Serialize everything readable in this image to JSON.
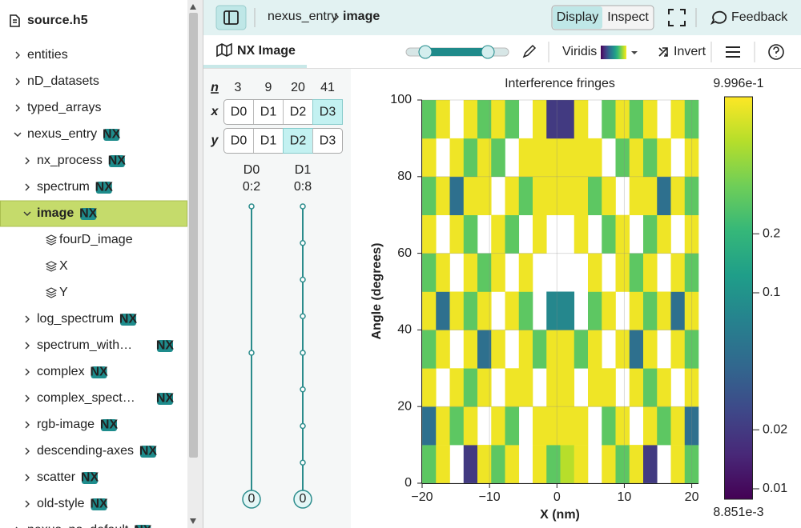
{
  "header": {
    "breadcrumb": [
      "nexus_entry",
      "image"
    ],
    "modes": [
      "Display",
      "Inspect"
    ],
    "active_mode": 0,
    "feedback": "Feedback"
  },
  "toolbar": {
    "tab": "NX Image",
    "colormap": "Viridis",
    "invert": "Invert"
  },
  "sidebar": {
    "title": "source.h5",
    "selected": 6,
    "items": [
      {
        "label": "entities",
        "level": 0,
        "kind": "group",
        "expanded": false
      },
      {
        "label": "nD_datasets",
        "level": 0,
        "kind": "group",
        "expanded": false
      },
      {
        "label": "typed_arrays",
        "level": 0,
        "kind": "group",
        "expanded": false
      },
      {
        "label": "nexus_entry",
        "badge": "NX",
        "level": 0,
        "kind": "group",
        "expanded": true
      },
      {
        "label": "nx_process",
        "badge": "NX",
        "level": 1,
        "kind": "group",
        "expanded": false
      },
      {
        "label": "spectrum",
        "badge": "NX",
        "level": 1,
        "kind": "group",
        "expanded": false
      },
      {
        "label": "image",
        "badge": "NX",
        "level": 1,
        "kind": "group",
        "expanded": true
      },
      {
        "label": "fourD_image",
        "level": 2,
        "kind": "dataset"
      },
      {
        "label": "X",
        "level": 2,
        "kind": "dataset"
      },
      {
        "label": "Y",
        "level": 2,
        "kind": "dataset"
      },
      {
        "label": "log_spectrum",
        "badge": "NX",
        "level": 1,
        "kind": "group",
        "expanded": false
      },
      {
        "label": "spectrum_with…",
        "badge": "NX",
        "level": 1,
        "kind": "group",
        "expanded": false
      },
      {
        "label": "complex",
        "badge": "NX",
        "level": 1,
        "kind": "group",
        "expanded": false
      },
      {
        "label": "complex_spect…",
        "badge": "NX",
        "level": 1,
        "kind": "group",
        "expanded": false
      },
      {
        "label": "rgb-image",
        "badge": "NX",
        "level": 1,
        "kind": "group",
        "expanded": false
      },
      {
        "label": "descending-axes",
        "badge": "NX",
        "level": 1,
        "kind": "group",
        "expanded": false
      },
      {
        "label": "scatter",
        "badge": "NX",
        "level": 1,
        "kind": "group",
        "expanded": false
      },
      {
        "label": "old-style",
        "badge": "NX",
        "level": 1,
        "kind": "group",
        "expanded": false
      },
      {
        "label": "nexus_no_default",
        "badge": "NX",
        "level": 0,
        "kind": "group",
        "expanded": false
      }
    ]
  },
  "dimension_mapper": {
    "n_label": "n",
    "sizes": [
      3,
      9,
      20,
      41
    ],
    "axes": [
      {
        "label": "x",
        "options": [
          "D0",
          "D1",
          "D2",
          "D3"
        ],
        "selected": 3
      },
      {
        "label": "y",
        "options": [
          "D0",
          "D1",
          "D2",
          "D3"
        ],
        "selected": 2
      }
    ],
    "sliders": [
      {
        "name": "D0",
        "range": "0:2",
        "value": 0
      },
      {
        "name": "D1",
        "range": "0:8",
        "value": 0
      }
    ]
  },
  "chart_data": {
    "type": "heatmap",
    "title": "Interference fringes",
    "x_label": "X (nm)",
    "y_label": "Angle (degrees)",
    "xlim": [
      -20,
      21
    ],
    "ylim": [
      0,
      100
    ],
    "xticks": [
      {
        "value": -20,
        "label": "−20"
      },
      {
        "value": -10,
        "label": "−10"
      },
      0,
      10,
      20
    ],
    "yticks": [
      0,
      20,
      40,
      60,
      80,
      100
    ],
    "grid": true,
    "values": [
      [
        0.3,
        0.9,
        null,
        0.02,
        0.9,
        0.3,
        0.9,
        null,
        0.9,
        0.3,
        0.6,
        0.9,
        null,
        0.9,
        0.3,
        0.9,
        0.02,
        null,
        0.9,
        0.3
      ],
      [
        0.05,
        0.9,
        0.3,
        0.9,
        null,
        0.9,
        0.3,
        null,
        0.9,
        0.9,
        0.9,
        0.9,
        null,
        0.3,
        0.9,
        null,
        0.9,
        0.3,
        0.9,
        0.05
      ],
      [
        0.9,
        null,
        0.9,
        0.3,
        0.9,
        null,
        0.9,
        0.9,
        null,
        0.9,
        0.9,
        null,
        0.9,
        0.9,
        null,
        0.9,
        0.3,
        0.9,
        null,
        0.9
      ],
      [
        0.3,
        0.9,
        null,
        0.9,
        0.05,
        0.9,
        null,
        0.9,
        0.3,
        0.9,
        0.9,
        0.3,
        0.9,
        null,
        0.9,
        0.05,
        0.9,
        null,
        0.9,
        0.3
      ],
      [
        0.9,
        0.05,
        0.9,
        0.3,
        0.9,
        null,
        0.9,
        0.3,
        null,
        0.08,
        0.08,
        null,
        0.3,
        0.9,
        null,
        0.9,
        0.3,
        0.9,
        0.05,
        0.9
      ],
      [
        0.3,
        0.9,
        null,
        0.9,
        0.3,
        0.9,
        null,
        0.9,
        null,
        null,
        null,
        null,
        0.9,
        null,
        0.9,
        0.3,
        0.9,
        null,
        0.9,
        0.3
      ],
      [
        0.9,
        null,
        0.9,
        0.3,
        null,
        0.9,
        0.3,
        null,
        0.9,
        null,
        null,
        0.9,
        null,
        0.3,
        0.9,
        null,
        0.3,
        0.9,
        null,
        0.9
      ],
      [
        0.3,
        0.9,
        0.05,
        0.9,
        0.9,
        null,
        0.9,
        0.3,
        0.9,
        0.9,
        0.9,
        0.9,
        0.3,
        0.9,
        null,
        0.9,
        0.9,
        0.05,
        0.9,
        0.3
      ],
      [
        0.9,
        null,
        0.9,
        0.3,
        0.9,
        0.3,
        null,
        0.9,
        0.9,
        0.9,
        0.9,
        0.9,
        0.9,
        null,
        0.3,
        0.9,
        0.3,
        0.9,
        null,
        0.9
      ],
      [
        0.3,
        0.9,
        null,
        0.9,
        0.3,
        0.9,
        0.3,
        null,
        0.9,
        0.02,
        0.02,
        0.9,
        null,
        0.3,
        0.9,
        0.3,
        0.9,
        null,
        0.9,
        0.3
      ]
    ],
    "colorbar": {
      "scale": "log",
      "limits": [
        {
          "value": 0.008851,
          "label": "8.851e-3"
        },
        {
          "value": 0.9996,
          "label": "9.996e-1"
        }
      ],
      "ticks": [
        0.01,
        0.02,
        0.1,
        0.2
      ],
      "colormap": [
        "#440154",
        "#482878",
        "#3e4989",
        "#31688e",
        "#26828e",
        "#1f9e89",
        "#35b779",
        "#6ece58",
        "#b5de2b",
        "#fde725"
      ]
    }
  }
}
